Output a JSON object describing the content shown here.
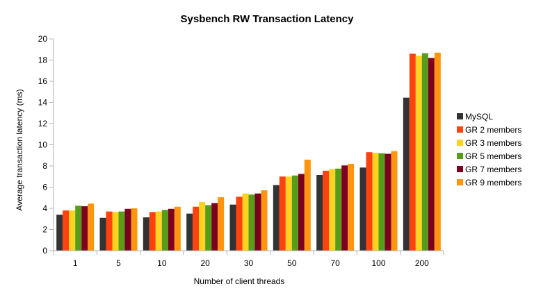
{
  "chart_data": {
    "type": "bar",
    "title": "Sysbench RW Transaction Latency",
    "xlabel": "Number of client threads",
    "ylabel": "Average transaction latency (ms)",
    "ylim": [
      0,
      20
    ],
    "yticks": [
      0,
      2,
      4,
      6,
      8,
      10,
      12,
      14,
      16,
      18,
      20
    ],
    "grid": false,
    "legend_position": "right",
    "categories": [
      "1",
      "5",
      "10",
      "20",
      "30",
      "50",
      "70",
      "100",
      "200"
    ],
    "series": [
      {
        "name": "MySQL",
        "color": "#333333",
        "values": [
          3.4,
          3.1,
          3.15,
          3.5,
          4.35,
          6.2,
          7.15,
          7.85,
          14.45
        ]
      },
      {
        "name": "GR 2 members",
        "color": "#ff420e",
        "values": [
          3.8,
          3.7,
          3.65,
          4.15,
          5.1,
          7.0,
          7.55,
          9.3,
          18.6
        ]
      },
      {
        "name": "GR 3 members",
        "color": "#ffd320",
        "values": [
          3.8,
          3.65,
          3.7,
          4.6,
          5.4,
          7.0,
          7.7,
          9.25,
          18.4
        ]
      },
      {
        "name": "GR 5 members",
        "color": "#579d1c",
        "values": [
          4.25,
          3.7,
          3.85,
          4.3,
          5.3,
          7.1,
          7.75,
          9.2,
          18.65
        ]
      },
      {
        "name": "GR 7 members",
        "color": "#7e0021",
        "values": [
          4.2,
          3.95,
          3.95,
          4.5,
          5.4,
          7.25,
          8.05,
          9.15,
          18.2
        ]
      },
      {
        "name": "GR 9 members",
        "color": "#ff950e",
        "values": [
          4.45,
          4.0,
          4.15,
          5.05,
          5.7,
          8.6,
          8.2,
          9.4,
          18.7
        ]
      }
    ]
  }
}
